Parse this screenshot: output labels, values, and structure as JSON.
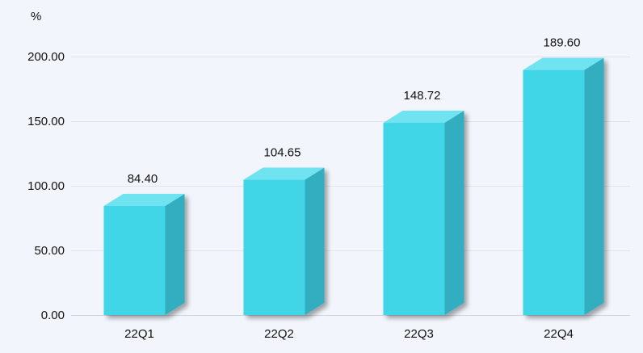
{
  "chart_data": {
    "type": "bar",
    "style": "3d-column",
    "unit": "%",
    "categories": [
      "22Q1",
      "22Q2",
      "22Q3",
      "22Q4"
    ],
    "values": [
      84.4,
      104.65,
      148.72,
      189.6
    ],
    "value_labels": [
      "84.40",
      "104.65",
      "148.72",
      "189.60"
    ],
    "y_ticks": [
      "0.00",
      "50.00",
      "100.00",
      "150.00",
      "200.00"
    ],
    "ylim": [
      0,
      200
    ],
    "grid": true,
    "legend": "none",
    "colors": {
      "bar_front": "#41d6e8",
      "bar_top": "#6fe3f0",
      "bar_side": "#33aec0",
      "background": "#f2f6fc",
      "grid": "#dfe4ee"
    }
  }
}
